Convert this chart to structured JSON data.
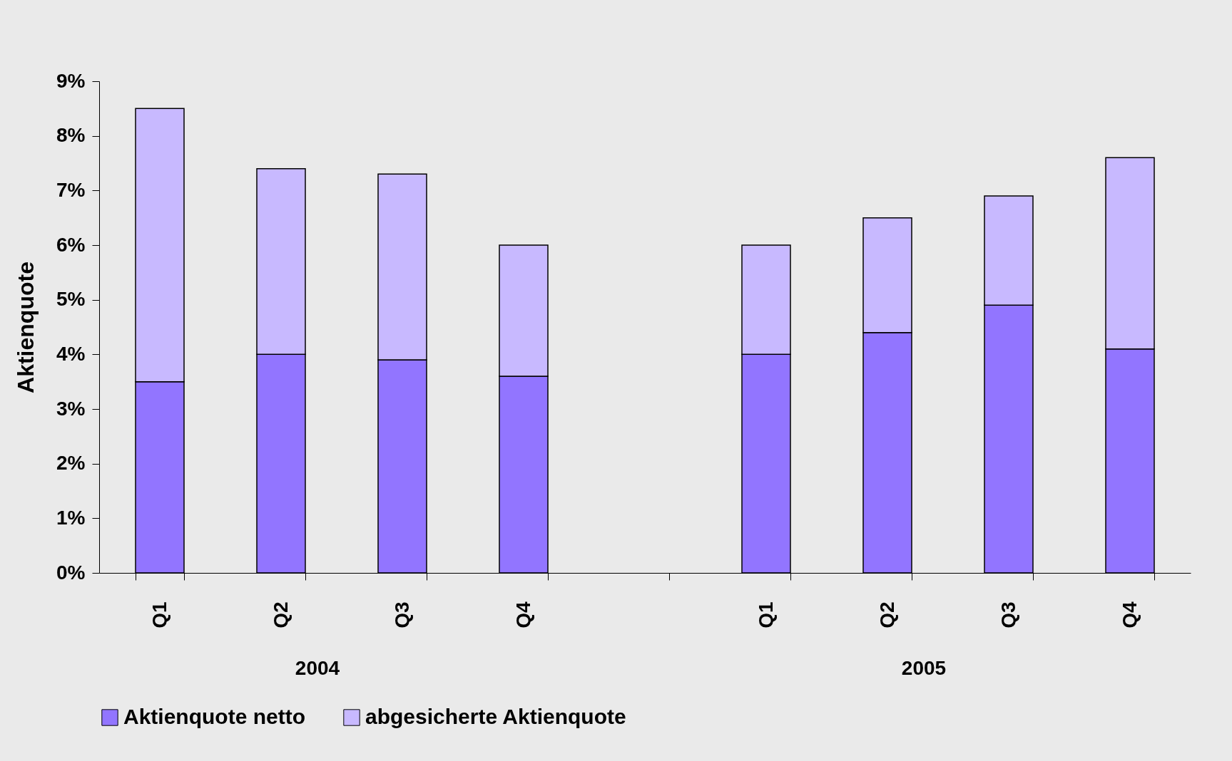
{
  "chart_data": {
    "type": "bar",
    "stacked": true,
    "ylabel": "Aktienquote",
    "categories": [
      "Q1",
      "Q2",
      "Q3",
      "Q4",
      null,
      "Q1",
      "Q2",
      "Q3",
      "Q4"
    ],
    "series": [
      {
        "name": "Aktienquote netto",
        "color": "#9275ff",
        "values": [
          3.5,
          4.0,
          3.9,
          3.6,
          null,
          4.0,
          4.4,
          4.9,
          4.1
        ]
      },
      {
        "name": "abgesicherte Aktienquote",
        "color": "#c8b9ff",
        "values": [
          5.0,
          3.4,
          3.4,
          2.4,
          null,
          2.0,
          2.1,
          2.0,
          3.5
        ]
      }
    ],
    "ylim": [
      0,
      9
    ],
    "yticks": [
      {
        "value": 0,
        "label": "0%"
      },
      {
        "value": 1,
        "label": "1%"
      },
      {
        "value": 2,
        "label": "2%"
      },
      {
        "value": 3,
        "label": "3%"
      },
      {
        "value": 4,
        "label": "4%"
      },
      {
        "value": 5,
        "label": "5%"
      },
      {
        "value": 6,
        "label": "6%"
      },
      {
        "value": 7,
        "label": "7%"
      },
      {
        "value": 8,
        "label": "8%"
      },
      {
        "value": 9,
        "label": "9%"
      }
    ],
    "annotations": [
      "2004",
      "2005"
    ],
    "grid": false,
    "legend": "bottom"
  }
}
